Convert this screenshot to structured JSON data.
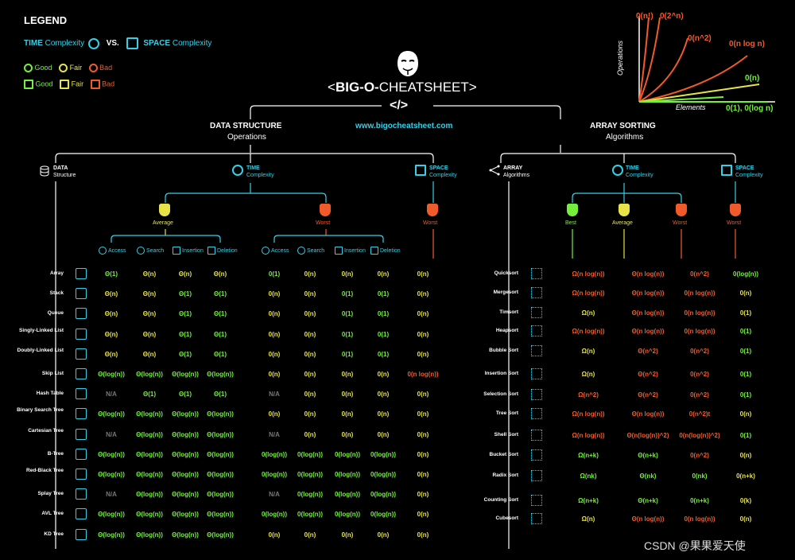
{
  "legend": {
    "title": "LEGEND",
    "time_word": "TIME",
    "complexity": "Complexity",
    "vs": "VS.",
    "space_word": "SPACE",
    "good": "Good",
    "fair": "Fair",
    "bad": "Bad"
  },
  "header": {
    "title_prefix": "<",
    "title_bold": "BIG-O-",
    "title_rest": "CHEATSHEET>",
    "code_tag": "</>",
    "url": "www.bigocheatsheet.com"
  },
  "growth_chart": {
    "ylabel": "Operations",
    "xlabel": "Elements",
    "labels": [
      "0(n!)",
      "0(2^n)",
      "0(n^2)",
      "0(n log n)",
      "0(n)",
      "0(1), 0(log n)"
    ]
  },
  "left": {
    "title": "DATA STRUCTURE",
    "subtitle": "Operations",
    "col_data": "DATA",
    "col_data_sub": "Structure",
    "col_time": "TIME",
    "col_time_sub": "Complexity",
    "col_space": "SPACE",
    "col_space_sub": "Complexity",
    "average": "Average",
    "worst": "Worst",
    "space_worst": "Worst",
    "ops": [
      "Access",
      "Search",
      "Insertion",
      "Deletion"
    ],
    "rows": [
      {
        "name": "Array",
        "v": [
          "Θ(1)",
          "Θ(n)",
          "Θ(n)",
          "Θ(n)",
          "0(1)",
          "0(n)",
          "0(n)",
          "0(n)",
          "0(n)"
        ],
        "c": [
          "g",
          "y",
          "y",
          "y",
          "g",
          "y",
          "y",
          "y",
          "y"
        ]
      },
      {
        "name": "Stack",
        "v": [
          "Θ(n)",
          "Θ(n)",
          "Θ(1)",
          "Θ(1)",
          "0(n)",
          "0(n)",
          "0(1)",
          "0(1)",
          "0(n)"
        ],
        "c": [
          "y",
          "y",
          "g",
          "g",
          "y",
          "y",
          "g",
          "g",
          "y"
        ]
      },
      {
        "name": "Queue",
        "v": [
          "Θ(n)",
          "Θ(n)",
          "Θ(1)",
          "Θ(1)",
          "0(n)",
          "0(n)",
          "0(1)",
          "0(1)",
          "0(n)"
        ],
        "c": [
          "y",
          "y",
          "g",
          "g",
          "y",
          "y",
          "g",
          "g",
          "y"
        ]
      },
      {
        "name": "Singly-Linked List",
        "v": [
          "Θ(n)",
          "Θ(n)",
          "Θ(1)",
          "Θ(1)",
          "0(n)",
          "0(n)",
          "0(1)",
          "0(1)",
          "0(n)"
        ],
        "c": [
          "y",
          "y",
          "g",
          "g",
          "y",
          "y",
          "g",
          "g",
          "y"
        ]
      },
      {
        "name": "Doubly-Linked List",
        "v": [
          "Θ(n)",
          "Θ(n)",
          "Θ(1)",
          "Θ(1)",
          "0(n)",
          "0(n)",
          "0(1)",
          "0(1)",
          "0(n)"
        ],
        "c": [
          "y",
          "y",
          "g",
          "g",
          "y",
          "y",
          "g",
          "g",
          "y"
        ]
      },
      {
        "name": "Skip List",
        "v": [
          "Θ(log(n))",
          "Θ(log(n))",
          "Θ(log(n))",
          "Θ(log(n))",
          "0(n)",
          "0(n)",
          "0(n)",
          "0(n)",
          "0(n log(n))"
        ],
        "c": [
          "g",
          "g",
          "g",
          "g",
          "y",
          "y",
          "y",
          "y",
          "r"
        ]
      },
      {
        "name": "Hash Table",
        "v": [
          "N/A",
          "Θ(1)",
          "Θ(1)",
          "Θ(1)",
          "N/A",
          "0(n)",
          "0(n)",
          "0(n)",
          "0(n)"
        ],
        "c": [
          "gray",
          "g",
          "g",
          "g",
          "gray",
          "y",
          "y",
          "y",
          "y"
        ]
      },
      {
        "name": "Binary Search Tree",
        "v": [
          "Θ(log(n))",
          "Θ(log(n))",
          "Θ(log(n))",
          "Θ(log(n))",
          "0(n)",
          "0(n)",
          "0(n)",
          "0(n)",
          "0(n)"
        ],
        "c": [
          "g",
          "g",
          "g",
          "g",
          "y",
          "y",
          "y",
          "y",
          "y"
        ]
      },
      {
        "name": "Cartesian Tree",
        "v": [
          "N/A",
          "Θ(log(n))",
          "Θ(log(n))",
          "Θ(log(n))",
          "N/A",
          "0(n)",
          "0(n)",
          "0(n)",
          "0(n)"
        ],
        "c": [
          "gray",
          "g",
          "g",
          "g",
          "gray",
          "y",
          "y",
          "y",
          "y"
        ]
      },
      {
        "name": "B-Tree",
        "v": [
          "Θ(log(n))",
          "Θ(log(n))",
          "Θ(log(n))",
          "Θ(log(n))",
          "0(log(n))",
          "0(log(n))",
          "0(log(n))",
          "0(log(n))",
          "0(n)"
        ],
        "c": [
          "g",
          "g",
          "g",
          "g",
          "g",
          "g",
          "g",
          "g",
          "y"
        ]
      },
      {
        "name": "Red-Black Tree",
        "v": [
          "Θ(log(n))",
          "Θ(log(n))",
          "Θ(log(n))",
          "Θ(log(n))",
          "0(log(n))",
          "0(log(n))",
          "0(log(n))",
          "0(log(n))",
          "0(n)"
        ],
        "c": [
          "g",
          "g",
          "g",
          "g",
          "g",
          "g",
          "g",
          "g",
          "y"
        ]
      },
      {
        "name": "Splay Tree",
        "v": [
          "N/A",
          "Θ(log(n))",
          "Θ(log(n))",
          "Θ(log(n))",
          "N/A",
          "0(log(n))",
          "0(log(n))",
          "0(log(n))",
          "0(n)"
        ],
        "c": [
          "gray",
          "g",
          "g",
          "g",
          "gray",
          "g",
          "g",
          "g",
          "y"
        ]
      },
      {
        "name": "AVL Tree",
        "v": [
          "Θ(log(n))",
          "Θ(log(n))",
          "Θ(log(n))",
          "Θ(log(n))",
          "0(log(n))",
          "0(log(n))",
          "0(log(n))",
          "0(log(n))",
          "0(n)"
        ],
        "c": [
          "g",
          "g",
          "g",
          "g",
          "g",
          "g",
          "g",
          "g",
          "y"
        ]
      },
      {
        "name": "KD Tree",
        "v": [
          "Θ(log(n))",
          "Θ(log(n))",
          "Θ(log(n))",
          "Θ(log(n))",
          "0(n)",
          "0(n)",
          "0(n)",
          "0(n)",
          "0(n)"
        ],
        "c": [
          "g",
          "g",
          "g",
          "g",
          "y",
          "y",
          "y",
          "y",
          "y"
        ]
      }
    ]
  },
  "right": {
    "title": "ARRAY SORTING",
    "subtitle": "Algorithms",
    "col_array": "ARRAY",
    "col_array_sub": "Algorithms",
    "col_time": "TIME",
    "col_time_sub": "Complexity",
    "col_space": "SPACE",
    "col_space_sub": "Complexity",
    "best": "Best",
    "average": "Average",
    "worst": "Worst",
    "space_worst": "Worst",
    "rows": [
      {
        "name": "Quicksort",
        "v": [
          "Ω(n log(n))",
          "Θ(n log(n))",
          "0(n^2)",
          "0(log(n))"
        ],
        "c": [
          "r",
          "r",
          "r",
          "g"
        ]
      },
      {
        "name": "Mergesort",
        "v": [
          "Ω(n log(n))",
          "Θ(n log(n))",
          "0(n log(n))",
          "0(n)"
        ],
        "c": [
          "r",
          "r",
          "r",
          "y"
        ]
      },
      {
        "name": "Timsort",
        "v": [
          "Ω(n)",
          "Θ(n log(n))",
          "0(n log(n))",
          "0(1)"
        ],
        "c": [
          "y",
          "r",
          "r",
          "y"
        ]
      },
      {
        "name": "Heapsort",
        "v": [
          "Ω(n log(n))",
          "Θ(n log(n))",
          "0(n log(n))",
          "0(1)"
        ],
        "c": [
          "r",
          "r",
          "r",
          "g"
        ]
      },
      {
        "name": "Bubble Sort",
        "v": [
          "Ω(n)",
          "Θ(n^2)",
          "0(n^2)",
          "0(1)"
        ],
        "c": [
          "y",
          "r",
          "r",
          "g"
        ]
      },
      {
        "name": "Insertion Sort",
        "v": [
          "Ω(n)",
          "Θ(n^2)",
          "0(n^2)",
          "0(1)"
        ],
        "c": [
          "y",
          "r",
          "r",
          "g"
        ]
      },
      {
        "name": "Selection Sort",
        "v": [
          "Ω(n^2)",
          "Θ(n^2)",
          "0(n^2)",
          "0(1)"
        ],
        "c": [
          "r",
          "r",
          "r",
          "g"
        ]
      },
      {
        "name": "Tree Sort",
        "v": [
          "Ω(n log(n))",
          "Θ(n log(n))",
          "0(n^2)t",
          "0(n)"
        ],
        "c": [
          "r",
          "r",
          "r",
          "y"
        ]
      },
      {
        "name": "Shell Sort",
        "v": [
          "Ω(n log(n))",
          "Θ(n(log(n))^2)",
          "0(n(log(n))^2)",
          "0(1)"
        ],
        "c": [
          "r",
          "r",
          "r",
          "g"
        ]
      },
      {
        "name": "Bucket Sort",
        "v": [
          "Ω(n+k)",
          "Θ(n+k)",
          "0(n^2)",
          "0(n)"
        ],
        "c": [
          "g",
          "g",
          "r",
          "y"
        ]
      },
      {
        "name": "Radix Sort",
        "v": [
          "Ω(nk)",
          "Θ(nk)",
          "0(nk)",
          "0(n+k)"
        ],
        "c": [
          "g",
          "g",
          "g",
          "y"
        ]
      },
      {
        "name": "Counting Sort",
        "v": [
          "Ω(n+k)",
          "Θ(n+k)",
          "0(n+k)",
          "0(k)"
        ],
        "c": [
          "g",
          "g",
          "g",
          "y"
        ]
      },
      {
        "name": "Cubesort",
        "v": [
          "Ω(n)",
          "Θ(n log(n))",
          "0(n log(n))",
          "0(n)"
        ],
        "c": [
          "y",
          "r",
          "r",
          "y"
        ]
      }
    ]
  },
  "watermark": "CSDN @果果爱天使",
  "colors": {
    "good": "#74f03c",
    "fair": "#e8e447",
    "bad": "#f15a2a",
    "accent": "#35d0e8"
  }
}
